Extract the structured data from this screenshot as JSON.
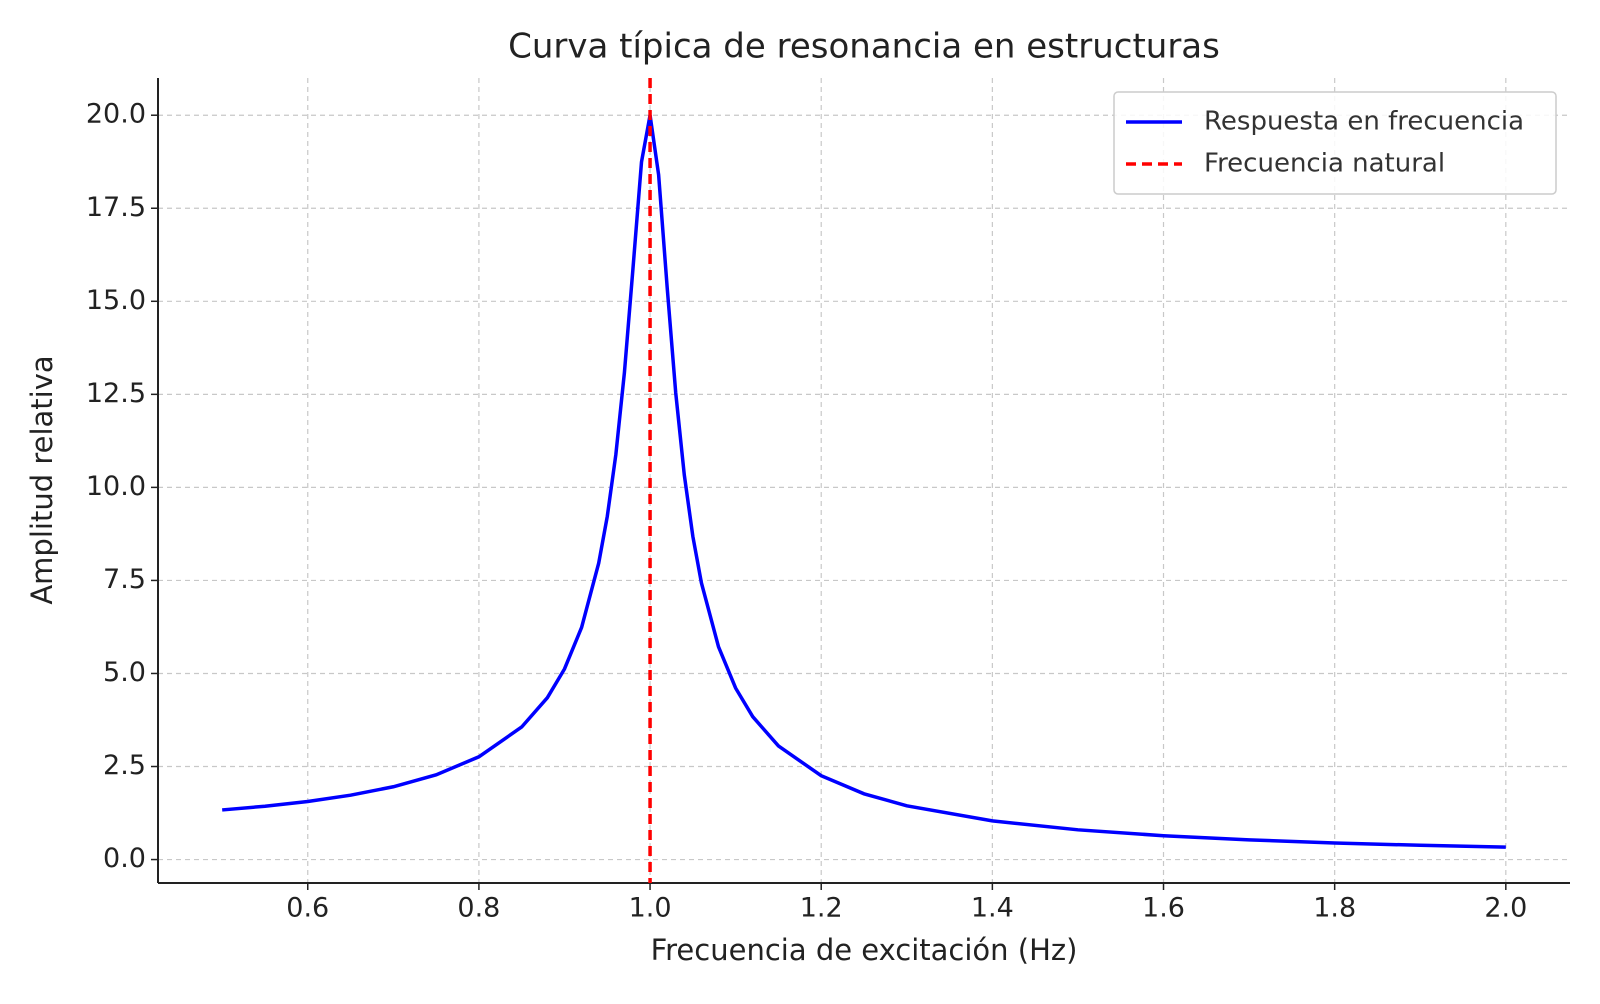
{
  "chart_data": {
    "type": "line",
    "title": "Curva típica de resonancia en estructuras",
    "x_label": "Frecuencia de excitación (Hz)",
    "y_label": "Amplitud relativa",
    "x": [
      0.5,
      0.55,
      0.6,
      0.65,
      0.7,
      0.75,
      0.8,
      0.85,
      0.88,
      0.9,
      0.92,
      0.94,
      0.95,
      0.96,
      0.97,
      0.98,
      0.99,
      1.0,
      1.01,
      1.02,
      1.03,
      1.04,
      1.05,
      1.06,
      1.08,
      1.1,
      1.12,
      1.15,
      1.2,
      1.25,
      1.3,
      1.4,
      1.5,
      1.6,
      1.7,
      1.8,
      1.9,
      2.0
    ],
    "series": [
      {
        "name": "Respuesta en frecuencia",
        "color": "#0000ff",
        "values": [
          1.333,
          1.433,
          1.561,
          1.729,
          1.956,
          2.277,
          2.761,
          3.562,
          4.35,
          5.121,
          6.237,
          7.966,
          9.22,
          10.878,
          13.08,
          15.873,
          18.744,
          20.0,
          18.4,
          15.37,
          12.538,
          10.335,
          8.683,
          7.436,
          5.716,
          4.607,
          3.839,
          3.053,
          2.252,
          1.767,
          1.443,
          1.039,
          0.799,
          0.64,
          0.529,
          0.446,
          0.383,
          0.333
        ]
      }
    ],
    "vline": {
      "name": "Frecuencia natural",
      "x": 1.0,
      "color": "#ff0000"
    },
    "xlim": [
      0.425,
      2.075
    ],
    "xticks": [
      {
        "value": 0.6,
        "label": "0.6"
      },
      {
        "value": 0.8,
        "label": "0.8"
      },
      {
        "value": 1.0,
        "label": "1.0"
      },
      {
        "value": 1.2,
        "label": "1.2"
      },
      {
        "value": 1.4,
        "label": "1.4"
      },
      {
        "value": 1.6,
        "label": "1.6"
      },
      {
        "value": 1.8,
        "label": "1.8"
      },
      {
        "value": 2.0,
        "label": "2.0"
      }
    ],
    "ylim": [
      -0.63,
      21.0
    ],
    "yticks": [
      {
        "value": 0,
        "label": "0.0"
      },
      2.5,
      {
        "value": 5,
        "label": "5.0"
      },
      7.5,
      {
        "value": 10,
        "label": "10.0"
      },
      12.5,
      {
        "value": 15,
        "label": "15.0"
      },
      17.5,
      {
        "value": 20,
        "label": "20.0"
      }
    ],
    "grid": true,
    "legend": "upper-right"
  }
}
